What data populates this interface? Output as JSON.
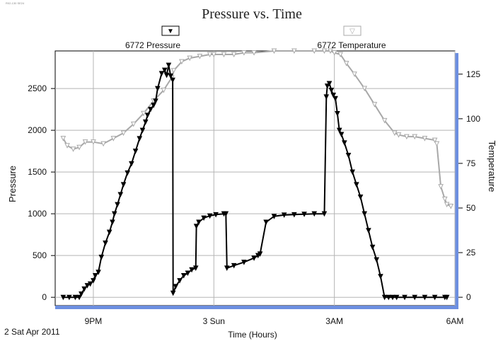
{
  "chart_data": {
    "type": "line",
    "title": "Pressure vs. Time",
    "corner_note": "R02-130 SE24",
    "xlabel": "Time (Hours)",
    "x_date_label": "2 Sat Apr 2011",
    "ylabel_left": "Pressure",
    "ylabel_right": "Temperature",
    "x_ticks": [
      "9PM",
      "3 Sun",
      "3AM",
      "6AM"
    ],
    "x_tick_hours": [
      21,
      27,
      33,
      39
    ],
    "xlim_hours": [
      19.1,
      39
    ],
    "y_left_ticks": [
      0,
      500,
      1000,
      1500,
      2000,
      2500
    ],
    "y_left_lim": [
      -100,
      2950
    ],
    "y_right_ticks": [
      0,
      25,
      50,
      75,
      100,
      125
    ],
    "y_right_lim": [
      -4.7,
      138
    ],
    "grid": true,
    "legend_position": "top",
    "colors": {
      "pressure": "#000000",
      "temperature": "#a8a8a8",
      "axis_accent": "#6d8fe0"
    },
    "series": [
      {
        "name": "6772 Pressure",
        "axis": "left",
        "marker": "▼",
        "x": [
          19.5,
          19.8,
          20.1,
          20.3,
          20.4,
          20.55,
          20.7,
          20.85,
          21.0,
          21.1,
          21.25,
          21.4,
          21.6,
          21.8,
          21.95,
          22.05,
          22.2,
          22.35,
          22.5,
          22.7,
          22.9,
          23.1,
          23.3,
          23.45,
          23.6,
          23.7,
          23.85,
          24.0,
          24.1,
          24.2,
          24.4,
          24.55,
          24.65,
          24.75,
          24.85,
          24.95,
          24.97,
          25.1,
          25.3,
          25.5,
          25.7,
          25.9,
          26.1,
          26.13,
          26.25,
          26.5,
          26.8,
          27.1,
          27.5,
          27.6,
          27.65,
          28.0,
          28.5,
          29.0,
          29.2,
          29.3,
          29.6,
          30.0,
          30.5,
          31.0,
          31.5,
          32.0,
          32.5,
          32.6,
          32.65,
          32.75,
          32.85,
          32.95,
          33.05,
          33.15,
          33.25,
          33.35,
          33.5,
          33.7,
          33.9,
          34.1,
          34.3,
          34.5,
          34.7,
          34.9,
          35.1,
          35.3,
          35.5,
          35.7,
          35.9,
          36.1,
          36.5,
          37.0,
          37.5,
          38.0,
          38.5,
          38.6
        ],
        "y": [
          0,
          0,
          0,
          0,
          40,
          100,
          140,
          160,
          200,
          260,
          300,
          480,
          650,
          780,
          900,
          1000,
          1110,
          1230,
          1350,
          1490,
          1600,
          1750,
          1900,
          2000,
          2100,
          2180,
          2250,
          2300,
          2350,
          2500,
          2680,
          2720,
          2660,
          2780,
          2650,
          2600,
          50,
          130,
          200,
          260,
          290,
          330,
          350,
          850,
          900,
          950,
          975,
          990,
          1000,
          1000,
          350,
          380,
          420,
          470,
          500,
          520,
          900,
          970,
          985,
          990,
          995,
          1000,
          1000,
          2400,
          2530,
          2560,
          2480,
          2420,
          2380,
          2200,
          2000,
          1950,
          1850,
          1700,
          1500,
          1350,
          1200,
          1000,
          800,
          600,
          450,
          250,
          0,
          0,
          0,
          0,
          0,
          0,
          0,
          0,
          0,
          0
        ],
        "labels_visible": [
          "6772 Pressure"
        ]
      },
      {
        "name": "6772 Temperature",
        "axis": "right",
        "marker": "▽",
        "x": [
          19.5,
          19.7,
          20.0,
          20.3,
          20.6,
          21.0,
          21.5,
          22.0,
          22.5,
          23.0,
          23.5,
          24.0,
          24.5,
          24.9,
          25.0,
          25.4,
          25.8,
          26.3,
          26.8,
          27.0,
          27.5,
          28.0,
          28.5,
          29.0,
          30.0,
          31.0,
          32.0,
          32.5,
          32.8,
          33.0,
          33.3,
          33.6,
          34.0,
          34.5,
          35.0,
          35.5,
          36.0,
          36.2,
          36.6,
          37.0,
          37.5,
          38.0,
          38.1,
          38.3,
          38.5,
          38.6,
          38.8
        ],
        "y": [
          89,
          85,
          83,
          84,
          87,
          87,
          86,
          89,
          92,
          97,
          103,
          110,
          116,
          123,
          127,
          132,
          134,
          135,
          136,
          136,
          136,
          136,
          137,
          137,
          138,
          138,
          138,
          138,
          138,
          137,
          136,
          131,
          125,
          117,
          108,
          99,
          92,
          91,
          90,
          90,
          89,
          88,
          86,
          62,
          55,
          52,
          51
        ],
        "labels_visible": [
          "6772 Temperature"
        ]
      }
    ]
  }
}
